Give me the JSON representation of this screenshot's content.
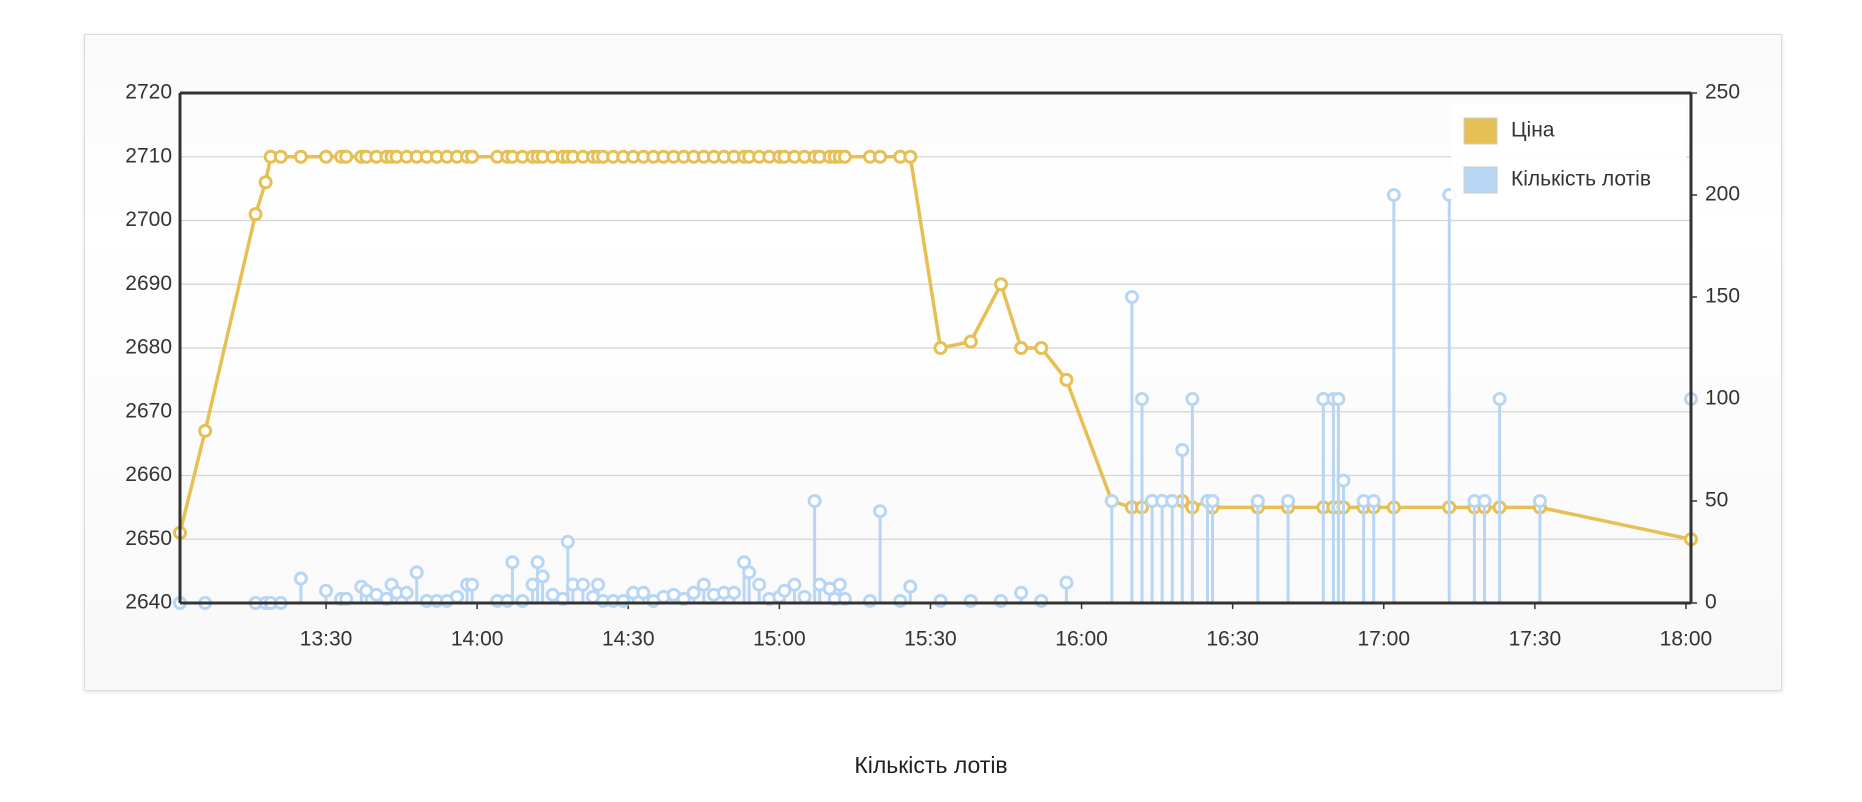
{
  "chart_data": {
    "type": "line-stem",
    "x": [
      "13:01",
      "13:06",
      "13:16",
      "13:18",
      "13:19",
      "13:21",
      "13:25",
      "13:30",
      "13:33",
      "13:34",
      "13:37",
      "13:38",
      "13:40",
      "13:42",
      "13:43",
      "13:44",
      "13:46",
      "13:48",
      "13:50",
      "13:52",
      "13:54",
      "13:56",
      "13:58",
      "13:59",
      "14:04",
      "14:06",
      "14:07",
      "14:09",
      "14:11",
      "14:12",
      "14:13",
      "14:15",
      "14:17",
      "14:18",
      "14:19",
      "14:21",
      "14:23",
      "14:24",
      "14:25",
      "14:27",
      "14:29",
      "14:31",
      "14:33",
      "14:35",
      "14:37",
      "14:39",
      "14:41",
      "14:43",
      "14:45",
      "14:47",
      "14:49",
      "14:51",
      "14:53",
      "14:54",
      "14:56",
      "14:58",
      "15:00",
      "15:01",
      "15:03",
      "15:05",
      "15:07",
      "15:08",
      "15:10",
      "15:11",
      "15:12",
      "15:13",
      "15:18",
      "15:20",
      "15:24",
      "15:26",
      "15:32",
      "15:38",
      "15:44",
      "15:48",
      "15:52",
      "15:57",
      "16:06",
      "16:10",
      "16:12",
      "16:14",
      "16:16",
      "16:18",
      "16:20",
      "16:22",
      "16:25",
      "16:26",
      "16:35",
      "16:41",
      "16:48",
      "16:50",
      "16:51",
      "16:52",
      "16:56",
      "16:58",
      "17:02",
      "17:13",
      "17:18",
      "17:20",
      "17:23",
      "17:31",
      "18:01"
    ],
    "series": [
      {
        "name": "Ціна",
        "color": "#e6bf55",
        "values": [
          2651,
          2667,
          2701,
          2706,
          2710,
          2710,
          2710,
          2710,
          2710,
          2710,
          2710,
          2710,
          2710,
          2710,
          2710,
          2710,
          2710,
          2710,
          2710,
          2710,
          2710,
          2710,
          2710,
          2710,
          2710,
          2710,
          2710,
          2710,
          2710,
          2710,
          2710,
          2710,
          2710,
          2710,
          2710,
          2710,
          2710,
          2710,
          2710,
          2710,
          2710,
          2710,
          2710,
          2710,
          2710,
          2710,
          2710,
          2710,
          2710,
          2710,
          2710,
          2710,
          2710,
          2710,
          2710,
          2710,
          2710,
          2710,
          2710,
          2710,
          2710,
          2710,
          2710,
          2710,
          2710,
          2710,
          2710,
          2710,
          2710,
          2710,
          2680,
          2681,
          2690,
          2680,
          2680,
          2675,
          2656,
          2655,
          2655,
          2656,
          2656,
          2656,
          2656,
          2655,
          2656,
          2655,
          2655,
          2655,
          2655,
          2655,
          2655,
          2655,
          2655,
          2655,
          2655,
          2655,
          2655,
          2655,
          2655,
          2655,
          2650
        ]
      },
      {
        "name": "Кількість лотів",
        "color": "#b8d6f4",
        "axis": "y2",
        "values": [
          0,
          0,
          0,
          0,
          0,
          0,
          12,
          6,
          2,
          2,
          8,
          6,
          4,
          2,
          9,
          5,
          5,
          15,
          1,
          1,
          1,
          3,
          9,
          9,
          1,
          1,
          20,
          1,
          9,
          20,
          13,
          4,
          2,
          30,
          9,
          9,
          3,
          9,
          1,
          1,
          1,
          5,
          5,
          1,
          3,
          4,
          2,
          5,
          9,
          4,
          5,
          5,
          20,
          15,
          9,
          2,
          3,
          6,
          9,
          3,
          50,
          9,
          7,
          2,
          9,
          2,
          1,
          45,
          1,
          8,
          1,
          1,
          1,
          5,
          1,
          10,
          50,
          150,
          100,
          50,
          50,
          50,
          75,
          100,
          50,
          50,
          50,
          50,
          100,
          100,
          100,
          60,
          50,
          50,
          200,
          200,
          50,
          50,
          100,
          50,
          100
        ]
      }
    ],
    "xlim": [
      "13:01",
      "18:01"
    ],
    "xticks": [
      "13:30",
      "14:00",
      "14:30",
      "15:00",
      "15:30",
      "16:00",
      "16:30",
      "17:00",
      "17:30",
      "18:00"
    ],
    "ylim": [
      2640,
      2720
    ],
    "yticks": [
      2640,
      2650,
      2660,
      2670,
      2680,
      2690,
      2700,
      2710,
      2720
    ],
    "y2lim": [
      0,
      250
    ],
    "y2ticks": [
      0,
      50,
      100,
      150,
      200,
      250
    ],
    "grid": true,
    "legend": "top-right"
  },
  "caption": "Кількість лотів"
}
